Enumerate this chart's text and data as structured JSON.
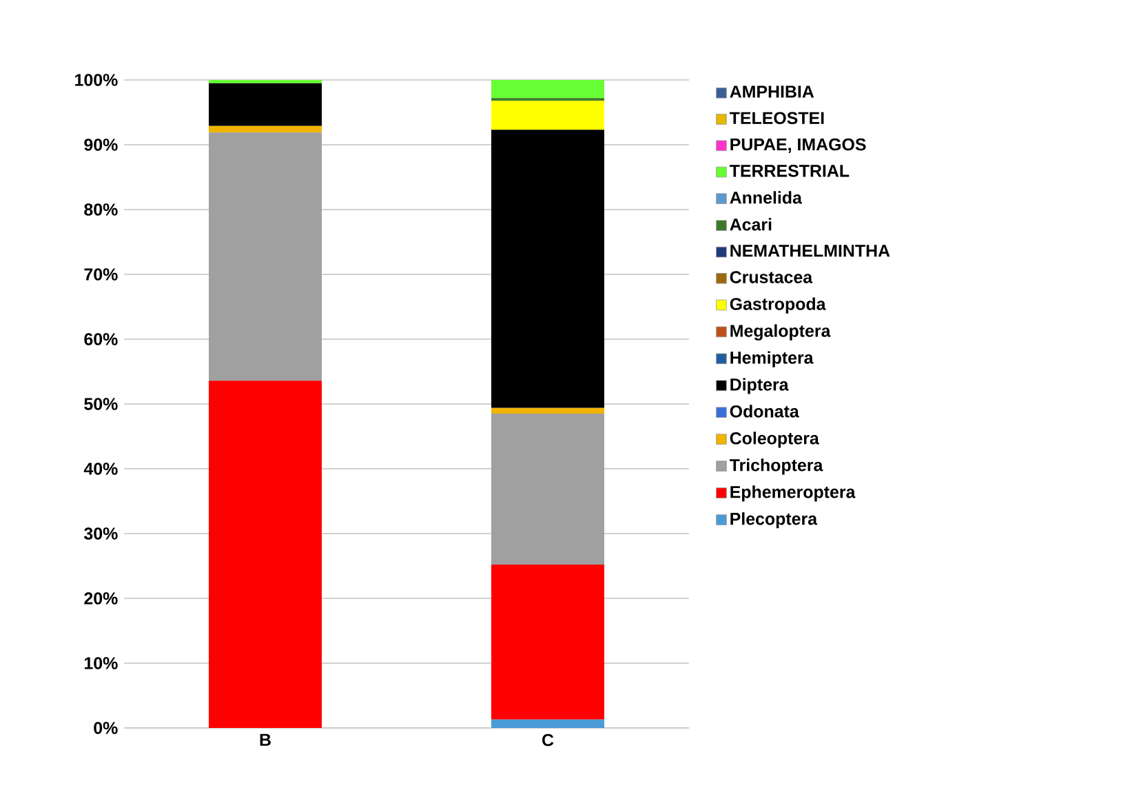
{
  "chart_data": {
    "type": "bar",
    "stacked": true,
    "categories": [
      "B",
      "C"
    ],
    "series": [
      {
        "name": "Plecoptera",
        "color": "#4a9bd6",
        "values": [
          0,
          1.3
        ]
      },
      {
        "name": "Ephemeroptera",
        "color": "#ff0000",
        "values": [
          53.6,
          23.9
        ]
      },
      {
        "name": "Trichoptera",
        "color": "#a0a0a0",
        "values": [
          38.3,
          23.3
        ]
      },
      {
        "name": "Coleoptera",
        "color": "#f0b400",
        "values": [
          1,
          0.9
        ]
      },
      {
        "name": "Odonata",
        "color": "#3a6fd8",
        "values": [
          0,
          0
        ]
      },
      {
        "name": "Diptera",
        "color": "#000000",
        "values": [
          6.6,
          42.9
        ]
      },
      {
        "name": "Hemiptera",
        "color": "#1f5f9f",
        "values": [
          0,
          0
        ]
      },
      {
        "name": "Megaloptera",
        "color": "#c0501a",
        "values": [
          0,
          0
        ]
      },
      {
        "name": "Gastropoda",
        "color": "#ffff00",
        "values": [
          0,
          4.5
        ]
      },
      {
        "name": "Crustacea",
        "color": "#9a6a10",
        "values": [
          0,
          0
        ]
      },
      {
        "name": "NEMATHELMINTHA",
        "color": "#1f3a7a",
        "values": [
          0,
          0
        ]
      },
      {
        "name": "Acari",
        "color": "#3a7a2a",
        "values": [
          0,
          0.4
        ]
      },
      {
        "name": "Annelida",
        "color": "#5a9ad0",
        "values": [
          0,
          0
        ]
      },
      {
        "name": "TERRESTRIAL",
        "color": "#66ff33",
        "values": [
          0.5,
          2.8
        ]
      },
      {
        "name": "PUPAE, IMAGOS",
        "color": "#ff33cc",
        "values": [
          0,
          0
        ]
      },
      {
        "name": "TELEOSTEI",
        "color": "#e6b800",
        "values": [
          0,
          0
        ]
      },
      {
        "name": "AMPHIBIA",
        "color": "#3c5e96",
        "values": [
          0,
          0
        ]
      }
    ],
    "ylim": [
      0,
      100
    ],
    "yticks": [
      {
        "value": 0,
        "label": "0%"
      },
      {
        "value": 10,
        "label": "10%"
      },
      {
        "value": 20,
        "label": "20%"
      },
      {
        "value": 30,
        "label": "30%"
      },
      {
        "value": 40,
        "label": "40%"
      },
      {
        "value": 50,
        "label": "50%"
      },
      {
        "value": 60,
        "label": "60%"
      },
      {
        "value": 70,
        "label": "70%"
      },
      {
        "value": 80,
        "label": "80%"
      },
      {
        "value": 90,
        "label": "90%"
      },
      {
        "value": 100,
        "label": "100%"
      }
    ],
    "grid": "y",
    "legend": "right"
  }
}
